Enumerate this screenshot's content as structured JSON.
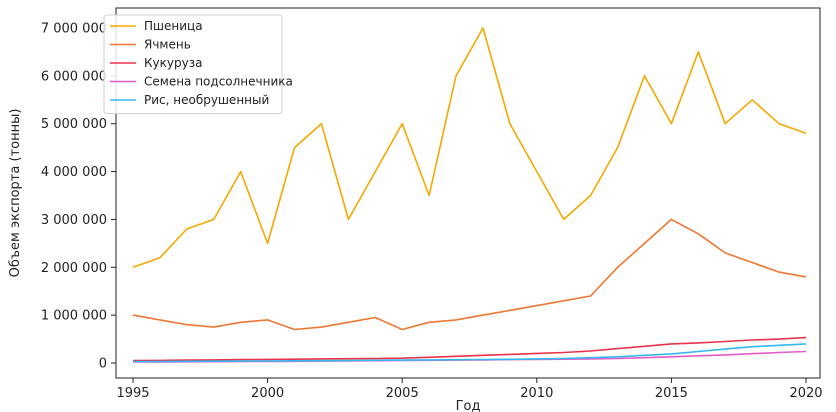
{
  "chart_data": {
    "type": "line",
    "title": "",
    "xlabel": "Год",
    "ylabel": "Объем экспорта (тонны)",
    "xlim": [
      1995,
      2020
    ],
    "ylim": [
      0,
      7000000
    ],
    "x_ticks": [
      1995,
      2000,
      2005,
      2010,
      2015,
      2020
    ],
    "y_ticks": [
      {
        "value": 0,
        "label": "0"
      },
      {
        "value": 1000000,
        "label": "1 000 000"
      },
      {
        "value": 2000000,
        "label": "2 000 000"
      },
      {
        "value": 3000000,
        "label": "3 000 000"
      },
      {
        "value": 4000000,
        "label": "4 000 000"
      },
      {
        "value": 5000000,
        "label": "5 000 000"
      },
      {
        "value": 6000000,
        "label": "6 000 000"
      },
      {
        "value": 7000000,
        "label": "7 000 000"
      }
    ],
    "grid": false,
    "legend_position": "top-left",
    "x": [
      1995,
      1996,
      1997,
      1998,
      1999,
      2000,
      2001,
      2002,
      2003,
      2004,
      2005,
      2006,
      2007,
      2008,
      2009,
      2010,
      2011,
      2012,
      2013,
      2014,
      2015,
      2016,
      2017,
      2018,
      2019,
      2020
    ],
    "series": [
      {
        "name": "Пшеница",
        "color": "#f5a800",
        "values": [
          2000000,
          2200000,
          2800000,
          3000000,
          4000000,
          2500000,
          4500000,
          5000000,
          3000000,
          4000000,
          5000000,
          3500000,
          6000000,
          7000000,
          5000000,
          4000000,
          3000000,
          3500000,
          4500000,
          6000000,
          5000000,
          6500000,
          5000000,
          5500000,
          5000000,
          4800000
        ]
      },
      {
        "name": "Ячмень",
        "color": "#ee7733",
        "values": [
          1000000,
          900000,
          800000,
          750000,
          850000,
          900000,
          700000,
          750000,
          850000,
          950000,
          700000,
          850000,
          900000,
          1000000,
          1100000,
          1200000,
          1300000,
          1400000,
          2000000,
          2500000,
          3000000,
          2700000,
          2300000,
          2100000,
          1900000,
          1800000
        ]
      },
      {
        "name": "Кукуруза",
        "color": "#e8334a",
        "values": [
          50000,
          55000,
          60000,
          65000,
          70000,
          75000,
          80000,
          85000,
          90000,
          95000,
          100000,
          120000,
          140000,
          160000,
          180000,
          200000,
          220000,
          250000,
          300000,
          350000,
          400000,
          420000,
          450000,
          480000,
          500000,
          530000
        ]
      },
      {
        "name": "Семена подсолнечника",
        "color": "#e55cc7",
        "values": [
          20000,
          22000,
          25000,
          28000,
          30000,
          33000,
          36000,
          40000,
          44000,
          48000,
          52000,
          56000,
          60000,
          65000,
          70000,
          75000,
          80000,
          85000,
          95000,
          110000,
          130000,
          150000,
          170000,
          195000,
          220000,
          240000
        ]
      },
      {
        "name": "Рис, необрушенный",
        "color": "#33b8f0",
        "values": [
          30000,
          32000,
          35000,
          38000,
          40000,
          42000,
          45000,
          48000,
          52000,
          56000,
          60000,
          64000,
          68000,
          72000,
          78000,
          85000,
          95000,
          110000,
          130000,
          160000,
          190000,
          240000,
          290000,
          340000,
          370000,
          400000
        ]
      }
    ]
  }
}
